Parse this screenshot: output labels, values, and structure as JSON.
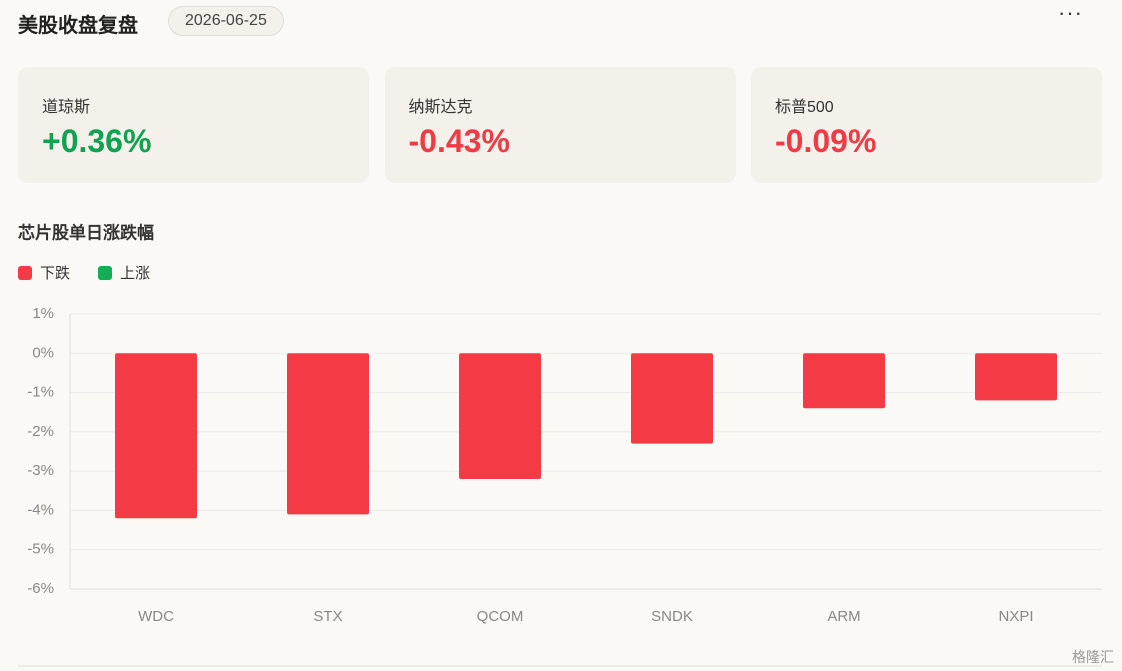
{
  "header": {
    "title": "美股收盘复盘",
    "date": "2026-06-25"
  },
  "indices": [
    {
      "name": "道琼斯",
      "change": "+0.36%",
      "color": "#12a150"
    },
    {
      "name": "纳斯达克",
      "change": "-0.43%",
      "color": "#f03a45"
    },
    {
      "name": "标普500",
      "change": "-0.09%",
      "color": "#f03a45"
    }
  ],
  "chart_data": {
    "type": "bar",
    "title": "芯片股单日涨跌幅",
    "categories": [
      "WDC",
      "STX",
      "QCOM",
      "SNDK",
      "ARM",
      "NXPI"
    ],
    "series": [
      {
        "name": "下跌",
        "color": "#f43a45",
        "values": [
          -4.2,
          -4.1,
          -3.2,
          -2.3,
          -1.4,
          -1.2
        ]
      },
      {
        "name": "上涨",
        "color": "#14ad55",
        "values": [
          null,
          null,
          null,
          null,
          null,
          null
        ]
      }
    ],
    "ylim": [
      -6,
      1
    ],
    "yticks": [
      {
        "value": 1,
        "label": "1%"
      },
      {
        "value": 0,
        "label": "0%"
      },
      {
        "value": -1,
        "label": "-1%"
      },
      {
        "value": -2,
        "label": "-2%"
      },
      {
        "value": -3,
        "label": "-3%"
      },
      {
        "value": -4,
        "label": "-4%"
      },
      {
        "value": -5,
        "label": "-5%"
      },
      {
        "value": -6,
        "label": "-6%"
      }
    ],
    "grid": true
  },
  "watermark": "格隆汇"
}
